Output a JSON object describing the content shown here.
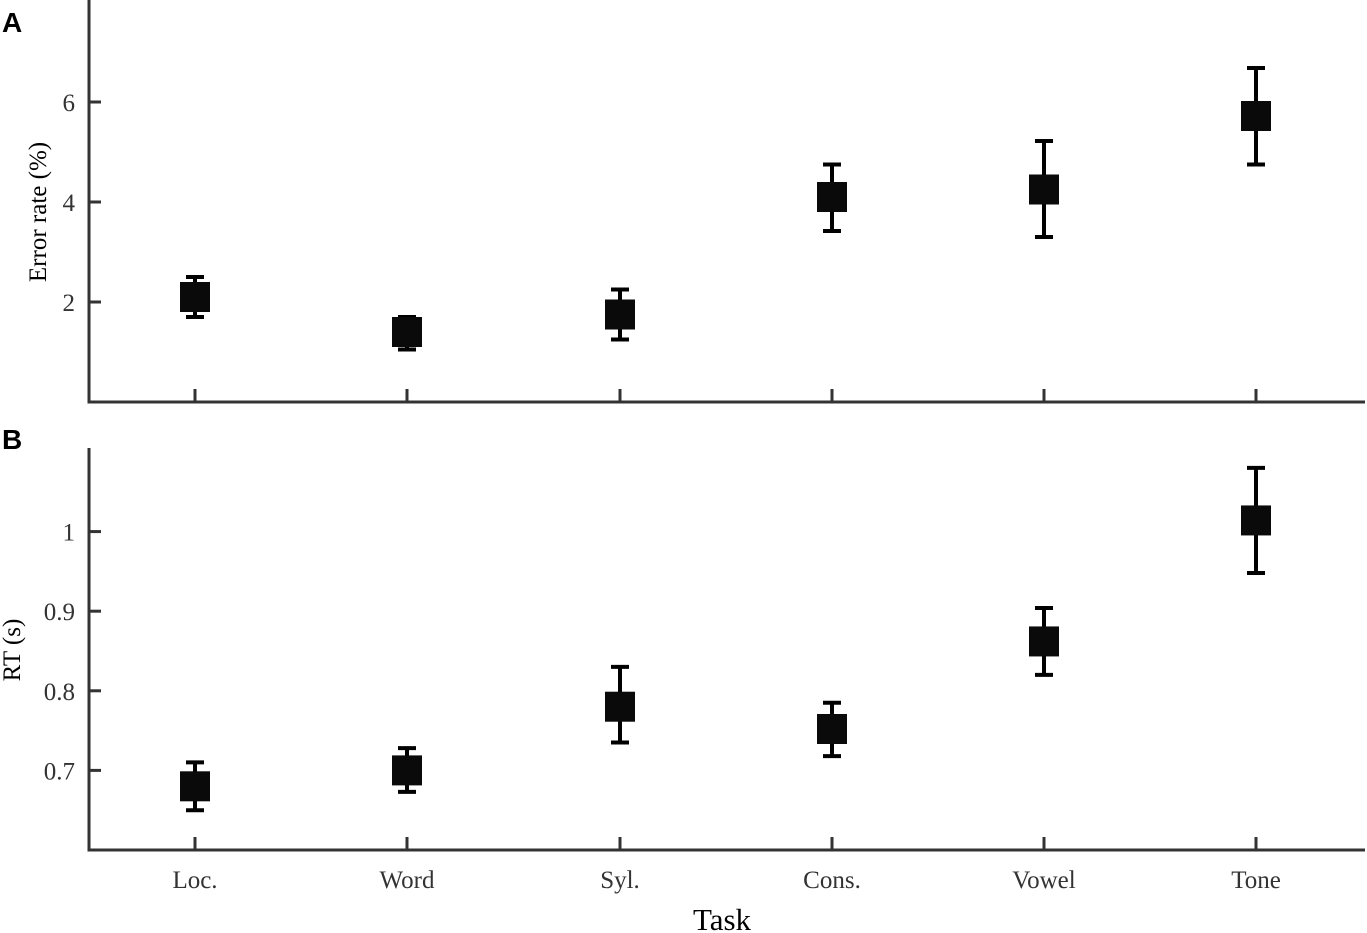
{
  "chart_data": [
    {
      "panel": "A",
      "type": "scatter",
      "categories": [
        "Loc.",
        "Word",
        "Syl.",
        "Cons.",
        "Vowel",
        "Tone"
      ],
      "values": [
        2.1,
        1.4,
        1.75,
        4.1,
        4.25,
        5.72
      ],
      "err_low": [
        1.7,
        1.05,
        1.25,
        3.42,
        3.3,
        4.75
      ],
      "err_high": [
        2.5,
        1.7,
        2.25,
        4.75,
        5.22,
        6.68
      ],
      "ylabel": "Error rate (%)",
      "yticks": [
        2,
        4,
        6
      ],
      "ylim": [
        0,
        8
      ]
    },
    {
      "panel": "B",
      "type": "scatter",
      "categories": [
        "Loc.",
        "Word",
        "Syl.",
        "Cons.",
        "Vowel",
        "Tone"
      ],
      "values": [
        0.68,
        0.7,
        0.78,
        0.752,
        0.862,
        1.014
      ],
      "err_low": [
        0.65,
        0.673,
        0.735,
        0.718,
        0.82,
        0.948
      ],
      "err_high": [
        0.71,
        0.728,
        0.83,
        0.785,
        0.904,
        1.08
      ],
      "ylabel": "RT (s)",
      "xlabel": "Task",
      "yticks": [
        0.7,
        0.8,
        0.9,
        1
      ],
      "ylim": [
        0.6,
        1.105
      ]
    }
  ]
}
